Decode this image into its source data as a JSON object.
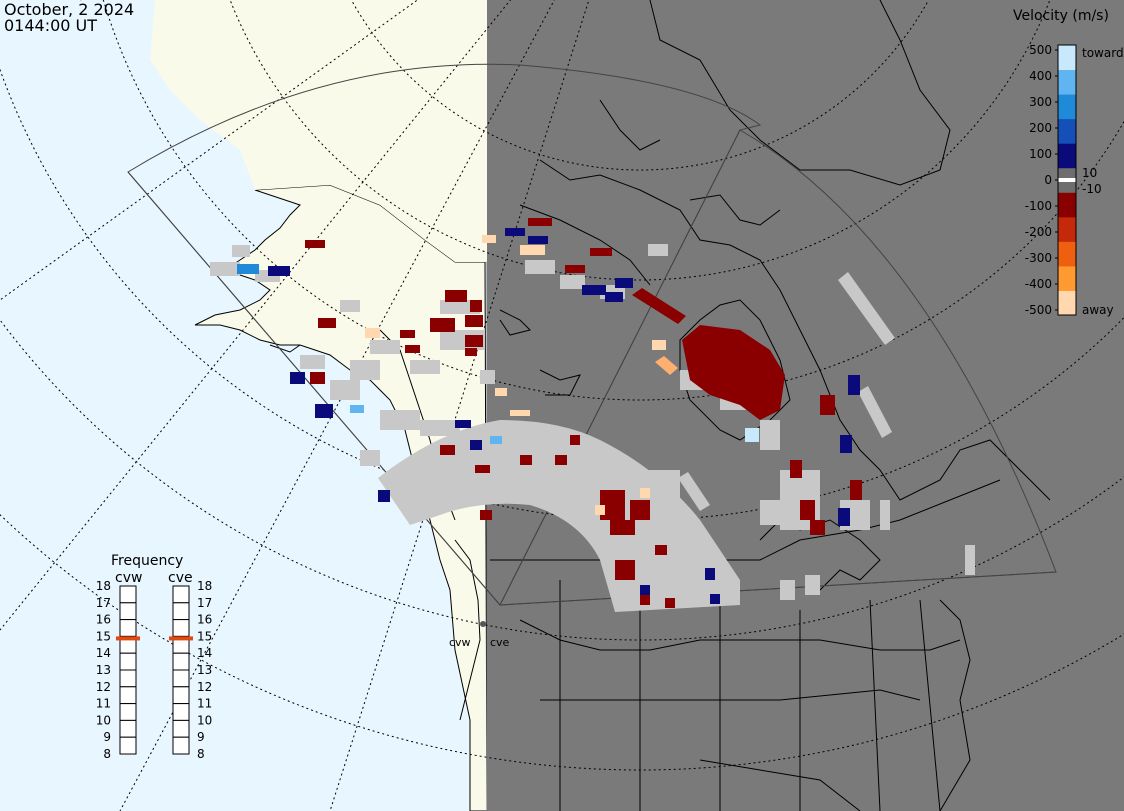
{
  "header": {
    "date": "October, 2 2024",
    "time": "0144:00 UT"
  },
  "velocity_legend": {
    "title": "Velocity (m/s)",
    "tick_labels": [
      "500",
      "400",
      "300",
      "200",
      "100",
      "0",
      "-100",
      "-200",
      "-300",
      "-400",
      "-500"
    ],
    "marker_upper": "10",
    "marker_lower": "-10",
    "end_toward": "toward",
    "end_away": "away",
    "colors": [
      "#ffd8b0",
      "#ff9a30",
      "#ee6010",
      "#c42a0a",
      "#8a0000",
      "#6e6e6e",
      "#0a0a7a",
      "#1450b8",
      "#1e8ad8",
      "#60b4f0",
      "#c8e8fc"
    ]
  },
  "frequency_legend": {
    "title": "Frequency",
    "radars": [
      {
        "name": "cvw",
        "selected": 15
      },
      {
        "name": "cve",
        "selected": 15
      }
    ],
    "scale": [
      "18",
      "17",
      "16",
      "15",
      "14",
      "13",
      "12",
      "11",
      "10",
      "9",
      "8"
    ],
    "marker_color": "#e04a10"
  },
  "map": {
    "radar_sites": [
      "cvw",
      "cve"
    ],
    "colors": {
      "ocean_day": "#e8f6ff",
      "land_day": "#fafaea",
      "night": "#7a7a7a",
      "ground_scatter": "#c8c8c8"
    }
  }
}
